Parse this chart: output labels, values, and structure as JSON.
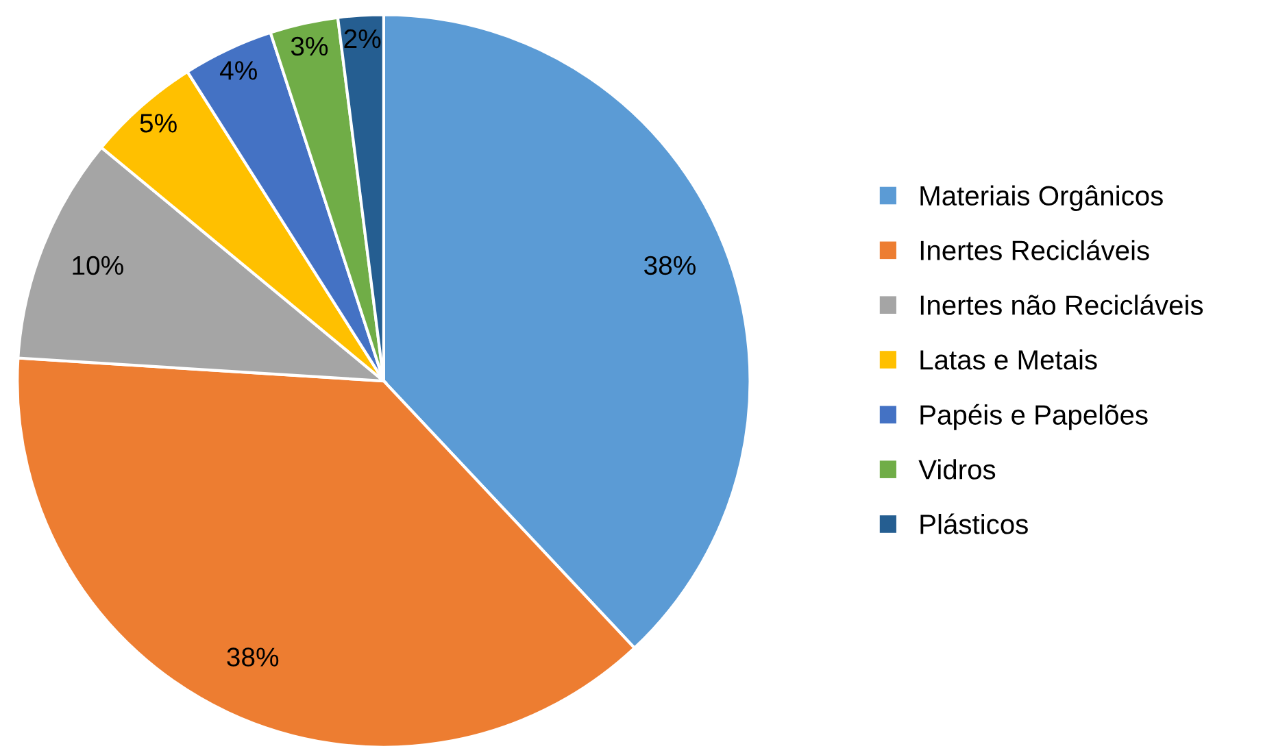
{
  "chart_data": {
    "type": "pie",
    "categories": [
      "Materiais Orgânicos",
      "Inertes Recicláveis",
      "Inertes não Recicláveis",
      "Latas e Metais",
      "Papéis e Papelões",
      "Vidros",
      "Plásticos"
    ],
    "values": [
      38,
      38,
      10,
      5,
      4,
      3,
      2
    ],
    "colors": [
      "#5b9bd5",
      "#ed7d31",
      "#a5a5a5",
      "#ffc000",
      "#4472c4",
      "#70ad47",
      "#255e91"
    ],
    "value_labels": [
      "38%",
      "38%",
      "10%",
      "5%",
      "4%",
      "3%",
      "2%"
    ],
    "legend": "right"
  }
}
